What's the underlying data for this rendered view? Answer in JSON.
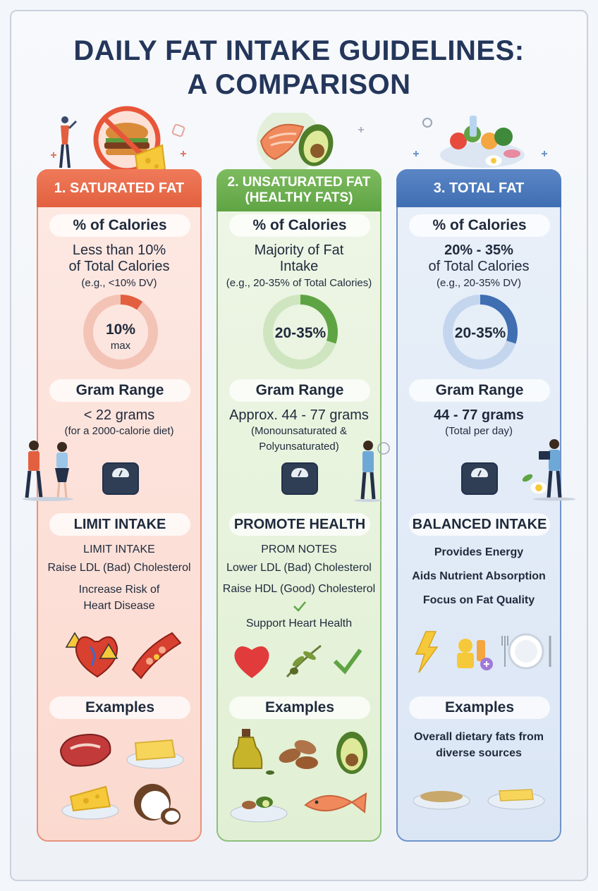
{
  "title_line1": "DAILY FAT INTAKE GUIDELINES:",
  "title_line2": "A COMPARISON",
  "columns": [
    {
      "header": "1. SATURATED FAT",
      "calories_label": "% of Calories",
      "calories_main_1": "Less than 10%",
      "calories_main_2": "of Total Calories",
      "calories_note": "(e.g., <10% DV)",
      "ring_value": "10%",
      "ring_sub": "max",
      "ring_fraction": 0.1,
      "gram_label": "Gram Range",
      "gram_main": "< 22 grams",
      "gram_note_1": "(for a 2000-calorie diet)",
      "gram_note_2": "",
      "effect_label": "LIMIT INTAKE",
      "effects": [
        "LIMIT INTAKE",
        "Raise LDL (Bad) Cholesterol",
        "Increase Risk of",
        "Heart Disease"
      ],
      "examples_label": "Examples",
      "examples_text_1": "",
      "examples_text_2": "",
      "color": "#e2603f"
    },
    {
      "header_1": "2. UNSATURATED FAT",
      "header_2": "(HEALTHY FATS)",
      "calories_label": "% of Calories",
      "calories_main_1": "Majority of Fat",
      "calories_main_2": "Intake",
      "calories_note": "(e.g., 20-35% of Total Calories)",
      "ring_value": "20-35%",
      "ring_fraction": 0.3,
      "gram_label": "Gram Range",
      "gram_main": "Approx. 44 - 77 grams",
      "gram_note_1": "(Monounsaturated &",
      "gram_note_2": "Polyunsaturated)",
      "effect_label": "PROMOTE HEALTH",
      "effects": [
        "PROM NOTES",
        "Lower LDL (Bad) Cholesterol",
        "Raise HDL (Good) Cholesterol",
        "Support Heart Health"
      ],
      "examples_label": "Examples",
      "color": "#5fa444"
    },
    {
      "header": "3. TOTAL FAT",
      "calories_label": "% of Calories",
      "calories_main_1": "20% - 35%",
      "calories_main_2": "of Total Calories",
      "calories_note": "(e.g., 20-35% DV)",
      "ring_value": "20-35%",
      "ring_fraction": 0.3,
      "gram_label": "Gram Range",
      "gram_main": "44 - 77 grams",
      "gram_note_1": "(Total per day)",
      "effect_label": "BALANCED INTAKE",
      "effects": [
        "Provides Energy",
        "Aids Nutrient Absorption",
        "Focus on Fat Quality"
      ],
      "examples_label": "Examples",
      "examples_text_1": "Overall dietary fats from",
      "examples_text_2": "diverse sources",
      "color": "#3f6eb2"
    }
  ]
}
